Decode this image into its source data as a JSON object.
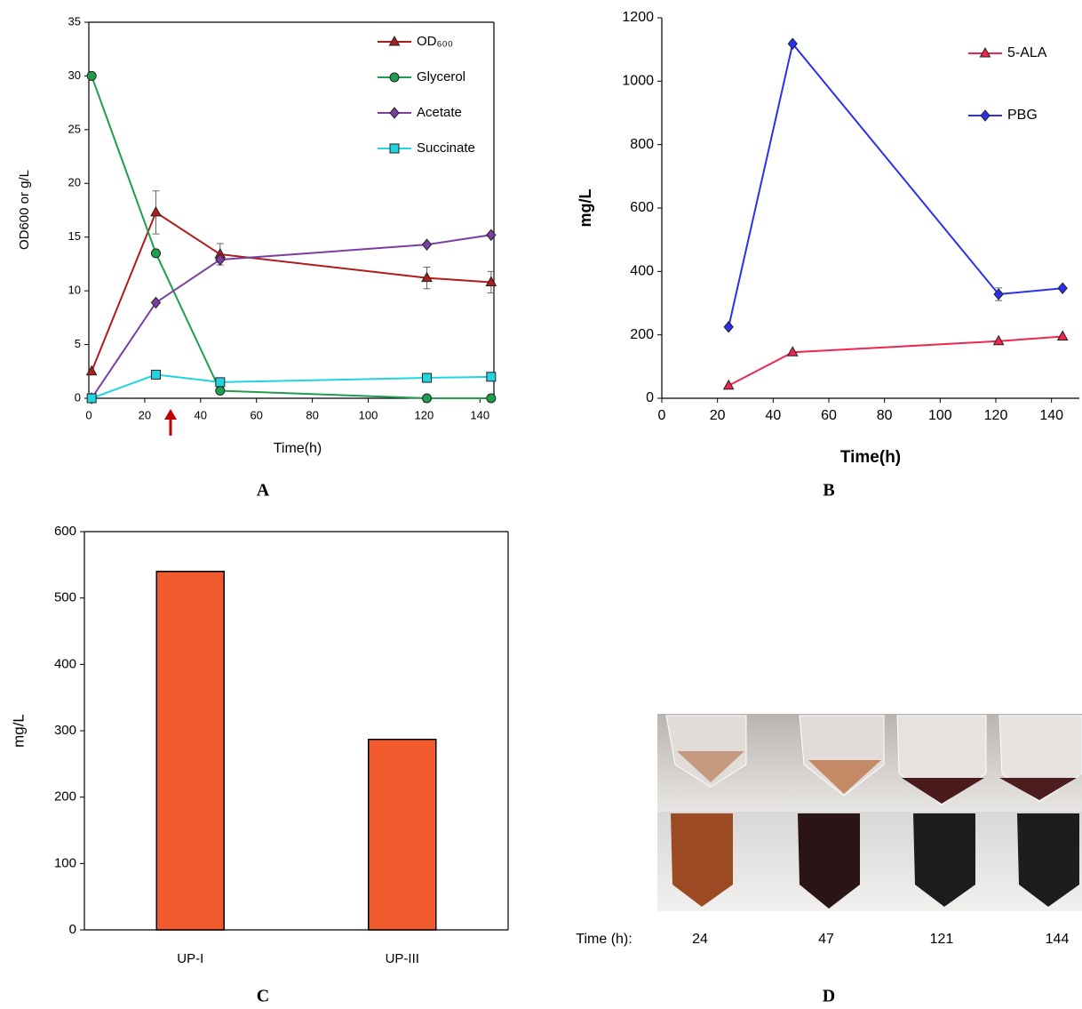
{
  "chart_data": [
    {
      "type": "line",
      "label": "A",
      "x_label": "Time(h)",
      "y_label": "OD600 or g/L",
      "x": [
        1,
        24,
        47,
        121,
        144
      ],
      "series": [
        {
          "name": "OD₆₀₀",
          "color": "#b01c1c",
          "marker": "triangle",
          "values": [
            2.5,
            17.3,
            13.4,
            11.2,
            10.8
          ],
          "errors": [
            0,
            2.0,
            1.0,
            1.0,
            1.0
          ]
        },
        {
          "name": "Glycerol",
          "color": "#1f9e4f",
          "marker": "circle",
          "values": [
            30,
            13.5,
            0.7,
            0,
            0
          ]
        },
        {
          "name": "Acetate",
          "color": "#7a3ea1",
          "marker": "diamond",
          "values": [
            0,
            8.9,
            12.9,
            14.3,
            15.2
          ]
        },
        {
          "name": "Succinate",
          "color": "#22d3e0",
          "marker": "square",
          "values": [
            0,
            2.2,
            1.5,
            1.9,
            2.0
          ]
        }
      ],
      "xlim": [
        0,
        145
      ],
      "xticks": [
        0,
        20,
        40,
        60,
        80,
        100,
        120,
        140
      ],
      "ylim": [
        0,
        35
      ],
      "yticks": [
        0,
        5,
        10,
        15,
        20,
        25,
        30,
        35
      ]
    },
    {
      "type": "line",
      "label": "B",
      "x_label": "Time(h)",
      "y_label": "mg/L",
      "x": [
        24,
        47,
        121,
        144
      ],
      "series": [
        {
          "name": "5-ALA",
          "color": "#f0254f",
          "marker": "triangle",
          "values": [
            40,
            145,
            180,
            195
          ]
        },
        {
          "name": "PBG",
          "color": "#2b2ff0",
          "marker": "diamond",
          "values": [
            225,
            1118,
            328,
            347
          ],
          "errors": [
            0,
            0,
            20,
            0
          ]
        }
      ],
      "xlim": [
        0,
        150
      ],
      "xticks": [
        0,
        20,
        40,
        60,
        80,
        100,
        120,
        140
      ],
      "ylim": [
        0,
        1200
      ],
      "yticks": [
        0,
        200,
        400,
        600,
        800,
        1000,
        1200
      ]
    },
    {
      "type": "bar",
      "label": "C",
      "y_label": "mg/L",
      "categories": [
        "UP-I",
        "UP-III"
      ],
      "values": [
        540,
        287
      ],
      "color": "#f05a2c",
      "ylim": [
        0,
        600
      ],
      "yticks": [
        0,
        100,
        200,
        300,
        400,
        500,
        600
      ]
    }
  ],
  "photo": {
    "label": "D",
    "caption": "Time (h):",
    "times": [
      "24",
      "47",
      "121",
      "144"
    ]
  }
}
